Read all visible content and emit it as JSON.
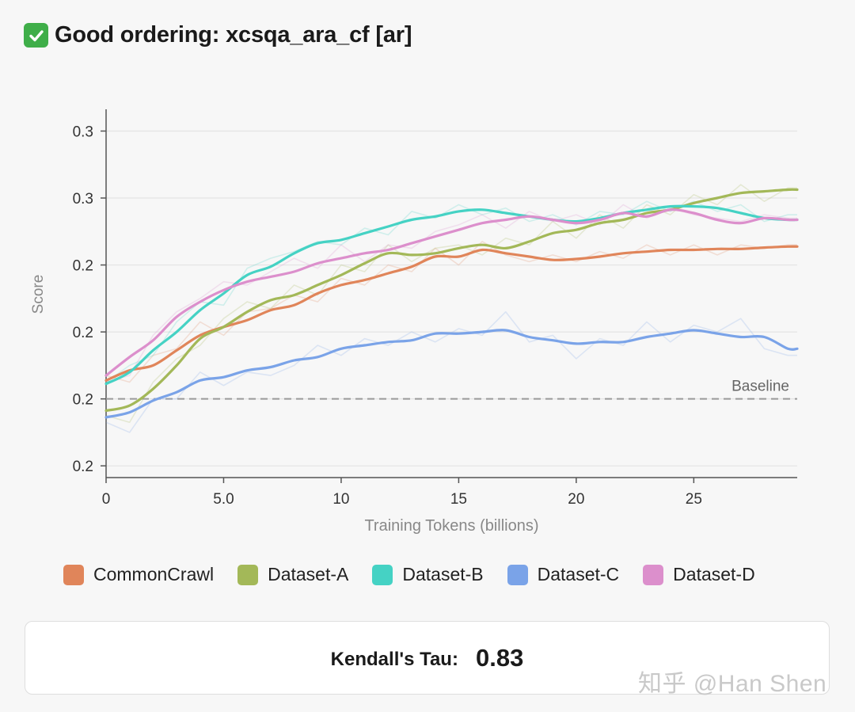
{
  "header": {
    "icon": "check-mark-icon",
    "title": "Good ordering: xcsqa_ara_cf [ar]"
  },
  "chart_data": {
    "type": "line",
    "title": "Good ordering: xcsqa_ara_cf [ar]",
    "xlabel": "Training Tokens (billions)",
    "ylabel": "Score",
    "xlim": [
      0,
      29.4
    ],
    "ylim": [
      0.1665,
      0.2765
    ],
    "x_ticks": [
      0,
      5,
      10,
      15,
      20,
      25
    ],
    "x_tick_labels": [
      "0",
      "5.0",
      "10",
      "15",
      "20",
      "25"
    ],
    "y_ticks": [
      0.17,
      0.19,
      0.21,
      0.23,
      0.25,
      0.27
    ],
    "y_tick_labels": [
      "0.2",
      "0.2",
      "0.2",
      "0.2",
      "0.3",
      "0.3"
    ],
    "grid": "horizontal",
    "baseline": {
      "label": "Baseline",
      "value": 0.19
    },
    "x": [
      0,
      1,
      2,
      3,
      4,
      5,
      6,
      7,
      8,
      9,
      10,
      11,
      12,
      13,
      14,
      15,
      16,
      17,
      18,
      19,
      20,
      21,
      22,
      23,
      24,
      25,
      26,
      27,
      28,
      29,
      29.4
    ],
    "series": [
      {
        "name": "CommonCrawl",
        "color": "#e0855a",
        "values": [
          0.1955,
          0.1985,
          0.2,
          0.2045,
          0.209,
          0.2115,
          0.2135,
          0.2165,
          0.218,
          0.2215,
          0.224,
          0.2255,
          0.2275,
          0.2295,
          0.2325,
          0.2325,
          0.2345,
          0.2335,
          0.2325,
          0.2315,
          0.2318,
          0.2325,
          0.2335,
          0.234,
          0.2345,
          0.2345,
          0.2348,
          0.2348,
          0.2352,
          0.2355,
          0.2355
        ],
        "raw": [
          0.197,
          0.195,
          0.203,
          0.205,
          0.213,
          0.209,
          0.216,
          0.217,
          0.221,
          0.219,
          0.226,
          0.224,
          0.23,
          0.228,
          0.235,
          0.23,
          0.237,
          0.233,
          0.231,
          0.233,
          0.231,
          0.234,
          0.232,
          0.236,
          0.233,
          0.236,
          0.233,
          0.236,
          0.235,
          0.236,
          0.236
        ]
      },
      {
        "name": "Dataset-A",
        "color": "#a3b858",
        "values": [
          0.1865,
          0.188,
          0.193,
          0.2,
          0.208,
          0.2115,
          0.216,
          0.2195,
          0.221,
          0.224,
          0.227,
          0.2305,
          0.2335,
          0.233,
          0.2335,
          0.235,
          0.236,
          0.235,
          0.237,
          0.2395,
          0.2405,
          0.2425,
          0.2435,
          0.2455,
          0.2465,
          0.2485,
          0.25,
          0.2515,
          0.252,
          0.2525,
          0.2525
        ],
        "raw": [
          0.185,
          0.183,
          0.195,
          0.202,
          0.206,
          0.214,
          0.219,
          0.217,
          0.224,
          0.221,
          0.23,
          0.228,
          0.236,
          0.231,
          0.235,
          0.236,
          0.233,
          0.238,
          0.236,
          0.243,
          0.238,
          0.245,
          0.241,
          0.248,
          0.245,
          0.251,
          0.248,
          0.254,
          0.249,
          0.253,
          0.253
        ]
      },
      {
        "name": "Dataset-B",
        "color": "#45d2c4",
        "values": [
          0.1945,
          0.198,
          0.2045,
          0.21,
          0.2165,
          0.2215,
          0.227,
          0.2295,
          0.2335,
          0.2365,
          0.2375,
          0.2395,
          0.2415,
          0.2435,
          0.2445,
          0.246,
          0.2465,
          0.2455,
          0.2445,
          0.2435,
          0.243,
          0.244,
          0.2455,
          0.2465,
          0.2475,
          0.2475,
          0.247,
          0.2455,
          0.244,
          0.2435,
          0.2435
        ],
        "raw": [
          0.195,
          0.2,
          0.203,
          0.213,
          0.219,
          0.218,
          0.229,
          0.232,
          0.234,
          0.237,
          0.236,
          0.241,
          0.239,
          0.246,
          0.244,
          0.248,
          0.245,
          0.247,
          0.243,
          0.245,
          0.242,
          0.246,
          0.245,
          0.249,
          0.246,
          0.249,
          0.246,
          0.248,
          0.243,
          0.245,
          0.245
        ]
      },
      {
        "name": "Dataset-C",
        "color": "#7aa3e8",
        "values": [
          0.1845,
          0.186,
          0.1895,
          0.192,
          0.1955,
          0.1965,
          0.1985,
          0.1995,
          0.2015,
          0.2025,
          0.205,
          0.206,
          0.207,
          0.2075,
          0.2095,
          0.2095,
          0.21,
          0.2105,
          0.2085,
          0.2075,
          0.2065,
          0.207,
          0.207,
          0.2085,
          0.2095,
          0.2105,
          0.2095,
          0.2085,
          0.2085,
          0.205,
          0.205
        ],
        "raw": [
          0.183,
          0.18,
          0.19,
          0.19,
          0.198,
          0.194,
          0.198,
          0.197,
          0.2,
          0.206,
          0.203,
          0.208,
          0.206,
          0.21,
          0.207,
          0.211,
          0.209,
          0.216,
          0.207,
          0.209,
          0.202,
          0.208,
          0.206,
          0.213,
          0.207,
          0.212,
          0.21,
          0.214,
          0.205,
          0.203,
          0.203
        ]
      },
      {
        "name": "Dataset-D",
        "color": "#dc8fcc",
        "values": [
          0.197,
          0.2025,
          0.2075,
          0.2145,
          0.219,
          0.2225,
          0.225,
          0.2265,
          0.228,
          0.2305,
          0.232,
          0.2335,
          0.2345,
          0.2365,
          0.2385,
          0.2405,
          0.2425,
          0.2435,
          0.2445,
          0.2435,
          0.2425,
          0.2435,
          0.2455,
          0.2445,
          0.2465,
          0.2455,
          0.2435,
          0.2425,
          0.244,
          0.2435,
          0.2435
        ],
        "raw": [
          0.195,
          0.197,
          0.209,
          0.216,
          0.22,
          0.225,
          0.224,
          0.228,
          0.232,
          0.229,
          0.236,
          0.231,
          0.236,
          0.235,
          0.24,
          0.242,
          0.245,
          0.241,
          0.246,
          0.243,
          0.245,
          0.242,
          0.248,
          0.244,
          0.247,
          0.245,
          0.244,
          0.243,
          0.245,
          0.244,
          0.244
        ]
      }
    ]
  },
  "legend": [
    {
      "label": "CommonCrawl",
      "color": "#e0855a"
    },
    {
      "label": "Dataset-A",
      "color": "#a3b858"
    },
    {
      "label": "Dataset-B",
      "color": "#45d2c4"
    },
    {
      "label": "Dataset-C",
      "color": "#7aa3e8"
    },
    {
      "label": "Dataset-D",
      "color": "#dc8fcc"
    }
  ],
  "summary": {
    "label": "Kendall's Tau:",
    "value": "0.83"
  },
  "watermark": "知乎 @Han Shen"
}
